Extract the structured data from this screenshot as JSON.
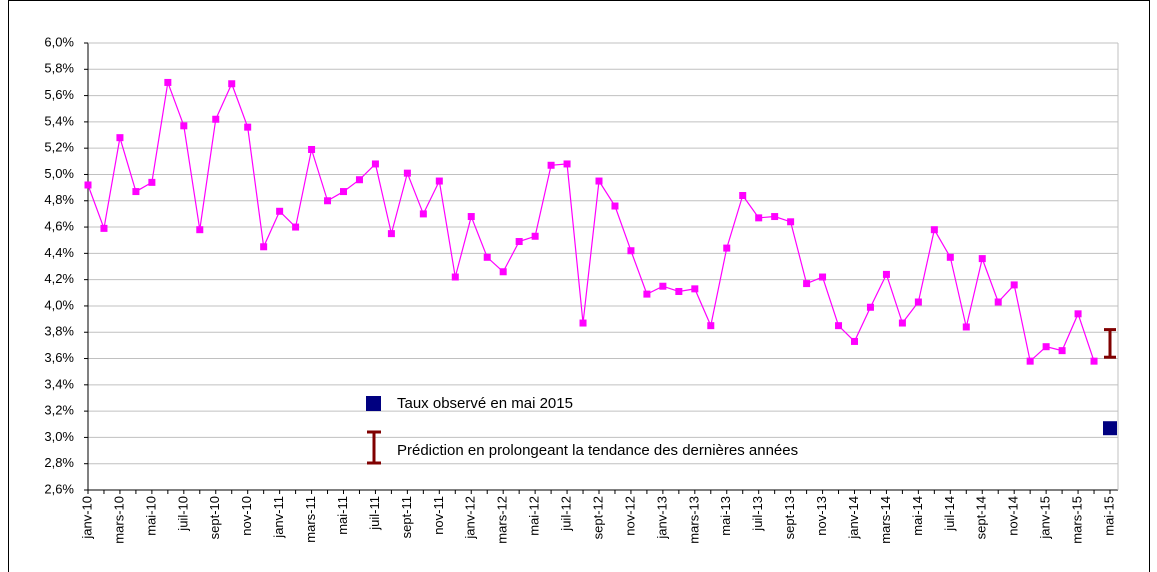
{
  "chart_data": {
    "type": "line",
    "categories": [
      "janv-10",
      null,
      "mars-10",
      null,
      "mai-10",
      null,
      "juil-10",
      null,
      "sept-10",
      null,
      "nov-10",
      null,
      "janv-11",
      null,
      "mars-11",
      null,
      "mai-11",
      null,
      "juil-11",
      null,
      "sept-11",
      null,
      "nov-11",
      null,
      "janv-12",
      null,
      "mars-12",
      null,
      "mai-12",
      null,
      "juil-12",
      null,
      "sept-12",
      null,
      "nov-12",
      null,
      "janv-13",
      null,
      "mars-13",
      null,
      "mai-13",
      null,
      "juil-13",
      null,
      "sept-13",
      null,
      "nov-13",
      null,
      "janv-14",
      null,
      "mars-14",
      null,
      "mai-14",
      null,
      "juil-14",
      null,
      "sept-14",
      null,
      "nov-14",
      null,
      "janv-15",
      null,
      "mars-15",
      null,
      "mai-15"
    ],
    "series": [
      {
        "color": "#ff00ff",
        "values": [
          4.92,
          4.59,
          5.28,
          4.87,
          4.94,
          5.7,
          5.37,
          4.58,
          5.42,
          5.69,
          5.36,
          4.45,
          4.72,
          4.6,
          5.19,
          4.8,
          4.87,
          4.96,
          5.08,
          4.55,
          5.01,
          4.7,
          4.95,
          4.22,
          4.68,
          4.37,
          4.26,
          4.49,
          4.53,
          5.07,
          5.08,
          3.87,
          4.95,
          4.76,
          4.42,
          4.09,
          4.15,
          4.11,
          4.13,
          3.85,
          4.44,
          4.84,
          4.67,
          4.68,
          4.64,
          4.17,
          4.22,
          3.85,
          3.73,
          3.99,
          4.24,
          3.87,
          4.03,
          4.58,
          4.37,
          3.84,
          4.36,
          4.03,
          4.16,
          3.58,
          3.69,
          3.66,
          3.94,
          3.58,
          null
        ]
      }
    ],
    "observed": {
      "name": "Taux observé en mai 2015",
      "color": "#000080",
      "index": 64,
      "value": 3.07
    },
    "prediction": {
      "name": "Prédiction en prolongeant la tendance des dernières années",
      "color": "#800000",
      "index": 64,
      "low": 3.61,
      "high": 3.82
    },
    "ylim": [
      2.6,
      6.0
    ],
    "yticks": [
      {
        "value": 2.6,
        "label": "2,6%"
      },
      {
        "value": 2.8,
        "label": "2,8%"
      },
      {
        "value": 3.0,
        "label": "3,0%"
      },
      {
        "value": 3.2,
        "label": "3,2%"
      },
      {
        "value": 3.4,
        "label": "3,4%"
      },
      {
        "value": 3.6,
        "label": "3,6%"
      },
      {
        "value": 3.8,
        "label": "3,8%"
      },
      {
        "value": 4.0,
        "label": "4,0%"
      },
      {
        "value": 4.2,
        "label": "4,2%"
      },
      {
        "value": 4.4,
        "label": "4,4%"
      },
      {
        "value": 4.6,
        "label": "4,6%"
      },
      {
        "value": 4.8,
        "label": "4,8%"
      },
      {
        "value": 5.0,
        "label": "5,0%"
      },
      {
        "value": 5.2,
        "label": "5,2%"
      },
      {
        "value": 5.4,
        "label": "5,4%"
      },
      {
        "value": 5.6,
        "label": "5,6%"
      },
      {
        "value": 5.8,
        "label": "5,8%"
      },
      {
        "value": 6.0,
        "label": "6,0%"
      }
    ],
    "grid": true
  }
}
